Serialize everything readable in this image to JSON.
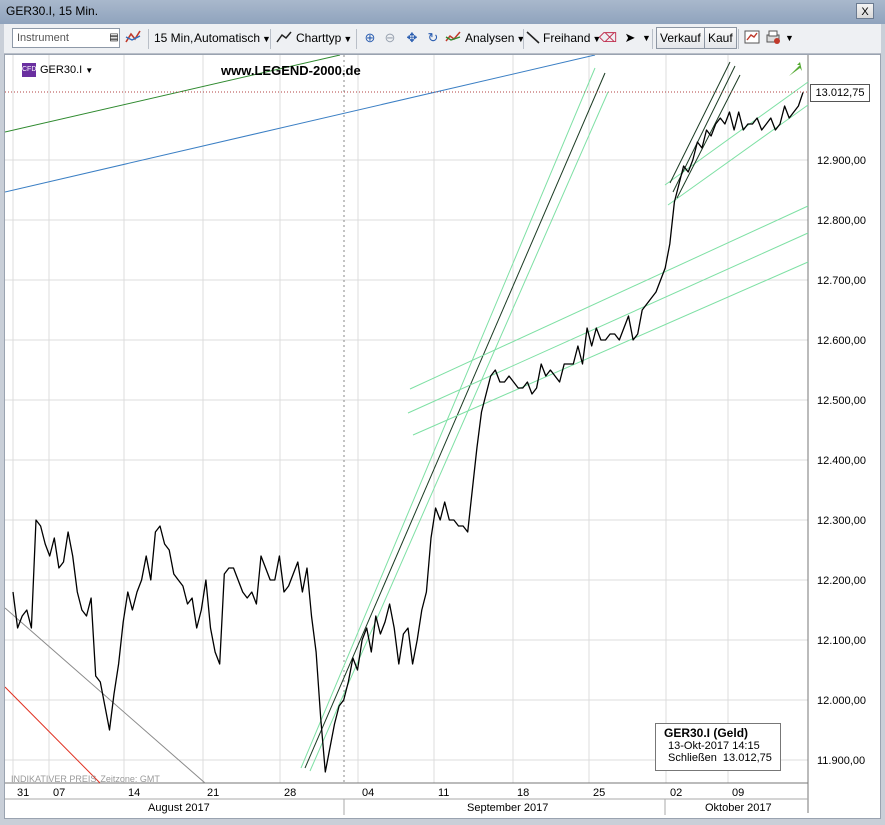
{
  "window": {
    "title": "GER30.I, 15 Min.",
    "close_glyph": "X"
  },
  "toolbar": {
    "instrument_placeholder": "Instrument",
    "timeframe": "15 Min,",
    "scale_mode": "Automatisch",
    "chart_type": "Charttyp",
    "analyses": "Analysen",
    "freehand": "Freihand",
    "sell": "Verkauf",
    "buy": "Kauf"
  },
  "chart": {
    "symbol": "GER30.I",
    "watermark": "www.LEGEND-2000.de",
    "last_price_label": "13.012,75",
    "footnote_left": "INDIKATIVER PREIS",
    "footnote_right": "Zeitzone: GMT",
    "info": {
      "title": "GER30.I (Geld)",
      "datetime": "13-Okt-2017 14:15",
      "close_label": "Schließen",
      "close_value": "13.012,75"
    }
  },
  "colors": {
    "up_arrow": "#55aa33",
    "price_line": "#000000",
    "channel_light": "#7ee0a4",
    "channel_dark": "#1a3a22",
    "trend_blue": "#3b7fc4",
    "trend_green": "#2f8a2f",
    "trend_red": "#e03020",
    "trend_gray": "#8a8a8a"
  },
  "chart_data": {
    "type": "line",
    "title": "GER30.I, 15 Min.",
    "y_ticks": [
      "11.900,00",
      "12.000,00",
      "12.100,00",
      "12.200,00",
      "12.300,00",
      "12.400,00",
      "12.500,00",
      "12.600,00",
      "12.700,00",
      "12.800,00",
      "12.900,00"
    ],
    "ylim": [
      11870,
      13080
    ],
    "x_ticks": [
      "31",
      "07",
      "14",
      "21",
      "28",
      "04",
      "11",
      "18",
      "25",
      "02",
      "09"
    ],
    "months": [
      "August 2017",
      "September 2017",
      "Oktober 2017"
    ],
    "last_value": 13012.75,
    "series": [
      {
        "values": [
          12180,
          12120,
          12140,
          12150,
          12120,
          12300,
          12290,
          12260,
          12240,
          12270,
          12220,
          12230,
          12280,
          12240,
          12180,
          12150,
          12140,
          12170,
          12040,
          12030,
          11990,
          11950,
          12010,
          12060,
          12130,
          12180,
          12150,
          12180,
          12200,
          12240,
          12200,
          12280,
          12290,
          12260,
          12250,
          12210,
          12200,
          12190,
          12160,
          12170,
          12120,
          12150,
          12200,
          12120,
          12080,
          12060,
          12210,
          12220,
          12220,
          12200,
          12180,
          12170,
          12180,
          12160,
          12240,
          12220,
          12200,
          12200,
          12240,
          12180,
          12190,
          12210,
          12230,
          12180,
          12220,
          12140,
          12080,
          11970,
          11880,
          11920,
          11960,
          11990,
          12000,
          12030,
          12070,
          12050,
          12100,
          12120,
          12080,
          12140,
          12110,
          12130,
          12160,
          12120,
          12060,
          12110,
          12120,
          12060,
          12100,
          12150,
          12180,
          12270,
          12320,
          12300,
          12330,
          12300,
          12300,
          12290,
          12290,
          12280,
          12350,
          12420,
          12480,
          12510,
          12540,
          12550,
          12530,
          12530,
          12540,
          12530,
          12520,
          12520,
          12530,
          12510,
          12520,
          12560,
          12540,
          12550,
          12540,
          12530,
          12560,
          12560,
          12560,
          12590,
          12560,
          12620,
          12590,
          12620,
          12600,
          12600,
          12610,
          12610,
          12600,
          12620,
          12640,
          12600,
          12610,
          12650,
          12660,
          12670,
          12680,
          12700,
          12720,
          12760,
          12830,
          12860,
          12890,
          12880,
          12900,
          12930,
          12920,
          12950,
          12940,
          12960,
          12970,
          12960,
          12980,
          12950,
          12980,
          12950,
          12960,
          12960,
          12970,
          12950,
          12960,
          12970,
          12950,
          12960,
          12990,
          12970,
          12980,
          12990,
          13012.75
        ]
      }
    ],
    "lines": [
      "trendline blue",
      "trendline green",
      "trendline red",
      "trendline gray",
      "uptrend channel light green",
      "uptrend channel dark",
      "parallel channel light green"
    ],
    "grid": true,
    "legend": "none"
  }
}
